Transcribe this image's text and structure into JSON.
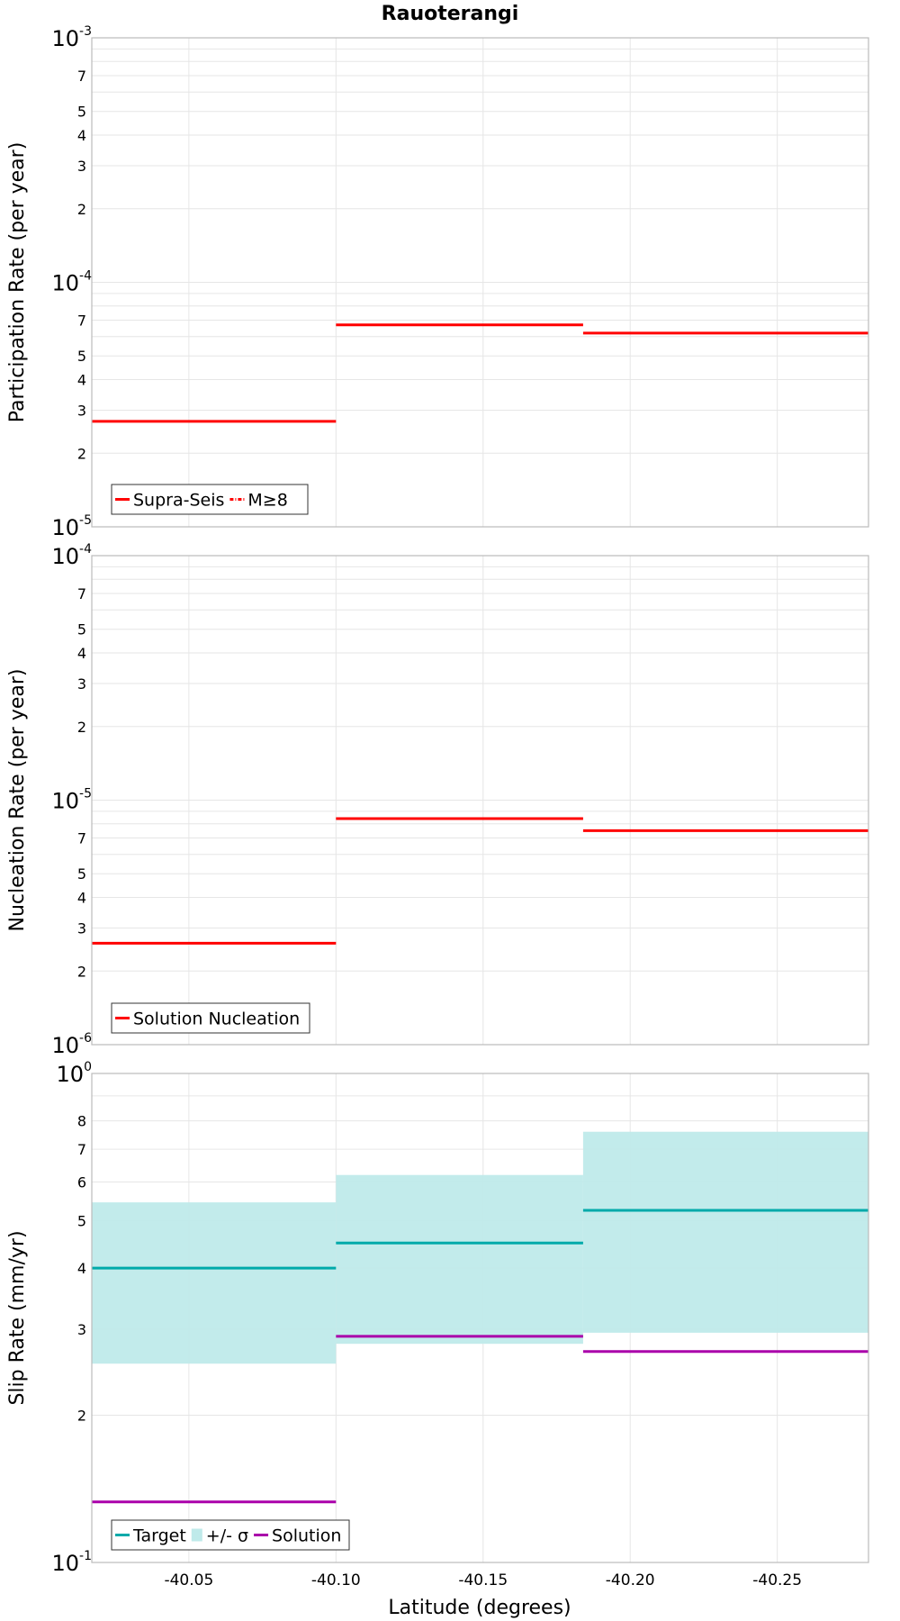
{
  "colors": {
    "supra_seis": "#ff0000",
    "m_ge_8": "#ff0000",
    "target": "#00aaaa",
    "sigma_band": "#bfeaea",
    "solution": "#aa00aa",
    "grid": "#e6e6e6",
    "frame": "#bbbbbb"
  },
  "chart_data": {
    "type": "line",
    "title": "Rauoterangi",
    "xlabel": "Latitude (degrees)",
    "x_range": [
      -40.017,
      -40.281
    ],
    "x_ticks": [
      -40.05,
      -40.1,
      -40.15,
      -40.2,
      -40.25
    ],
    "x_tick_labels": [
      "-40.05",
      "-40.10",
      "-40.15",
      "-40.20",
      "-40.25"
    ],
    "grid": true,
    "legend_position": "bottom-left",
    "panels": [
      {
        "ylabel": "Participation Rate (per year)",
        "y_scale": "log",
        "y_range": [
          1e-05,
          0.001
        ],
        "decade_labels": [
          {
            "base": "10",
            "exp": "-5"
          },
          {
            "base": "10",
            "exp": "-4"
          },
          {
            "base": "10",
            "exp": "-3"
          }
        ],
        "minor_labels": [
          "2",
          "3",
          "4",
          "5",
          "7"
        ],
        "series": [
          {
            "name": "Supra-Seis",
            "style": "solid",
            "color": "#ff0000",
            "segments": [
              {
                "x0": -40.017,
                "x1": -40.1,
                "y": 2.7e-05
              },
              {
                "x0": -40.1,
                "x1": -40.184,
                "y": 6.7e-05
              },
              {
                "x0": -40.184,
                "x1": -40.281,
                "y": 6.2e-05
              }
            ]
          },
          {
            "name": "M≥8",
            "style": "dash-dot",
            "color": "#ff0000",
            "segments": []
          }
        ]
      },
      {
        "ylabel": "Nucleation Rate (per year)",
        "y_scale": "log",
        "y_range": [
          1e-06,
          0.0001
        ],
        "decade_labels": [
          {
            "base": "10",
            "exp": "-6"
          },
          {
            "base": "10",
            "exp": "-5"
          },
          {
            "base": "10",
            "exp": "-4"
          }
        ],
        "minor_labels": [
          "2",
          "3",
          "4",
          "5",
          "7"
        ],
        "series": [
          {
            "name": "Solution Nucleation",
            "style": "solid",
            "color": "#ff0000",
            "segments": [
              {
                "x0": -40.017,
                "x1": -40.1,
                "y": 2.6e-06
              },
              {
                "x0": -40.1,
                "x1": -40.184,
                "y": 8.4e-06
              },
              {
                "x0": -40.184,
                "x1": -40.281,
                "y": 7.5e-06
              }
            ]
          }
        ]
      },
      {
        "ylabel": "Slip Rate (mm/yr)",
        "y_scale": "log",
        "y_range": [
          0.1,
          1.0
        ],
        "decade_labels": [
          {
            "base": "10",
            "exp": "-1"
          },
          {
            "base": "10",
            "exp": "0"
          }
        ],
        "minor_labels": [
          "2",
          "3",
          "4",
          "5",
          "6",
          "7",
          "8"
        ],
        "bands": [
          {
            "name": "+/- σ",
            "color": "#bfeaea",
            "segments": [
              {
                "x0": -40.017,
                "x1": -40.1,
                "y_low": 0.255,
                "y_high": 0.545
              },
              {
                "x0": -40.1,
                "x1": -40.184,
                "y_low": 0.28,
                "y_high": 0.62
              },
              {
                "x0": -40.184,
                "x1": -40.281,
                "y_low": 0.295,
                "y_high": 0.76
              }
            ]
          }
        ],
        "series": [
          {
            "name": "Target",
            "style": "solid",
            "color": "#00aaaa",
            "segments": [
              {
                "x0": -40.017,
                "x1": -40.1,
                "y": 0.4
              },
              {
                "x0": -40.1,
                "x1": -40.184,
                "y": 0.45
              },
              {
                "x0": -40.184,
                "x1": -40.281,
                "y": 0.525
              }
            ]
          },
          {
            "name": "Solution",
            "style": "solid",
            "color": "#aa00aa",
            "segments": [
              {
                "x0": -40.017,
                "x1": -40.1,
                "y": 0.133
              },
              {
                "x0": -40.1,
                "x1": -40.184,
                "y": 0.29
              },
              {
                "x0": -40.184,
                "x1": -40.281,
                "y": 0.27
              }
            ]
          }
        ]
      }
    ]
  }
}
